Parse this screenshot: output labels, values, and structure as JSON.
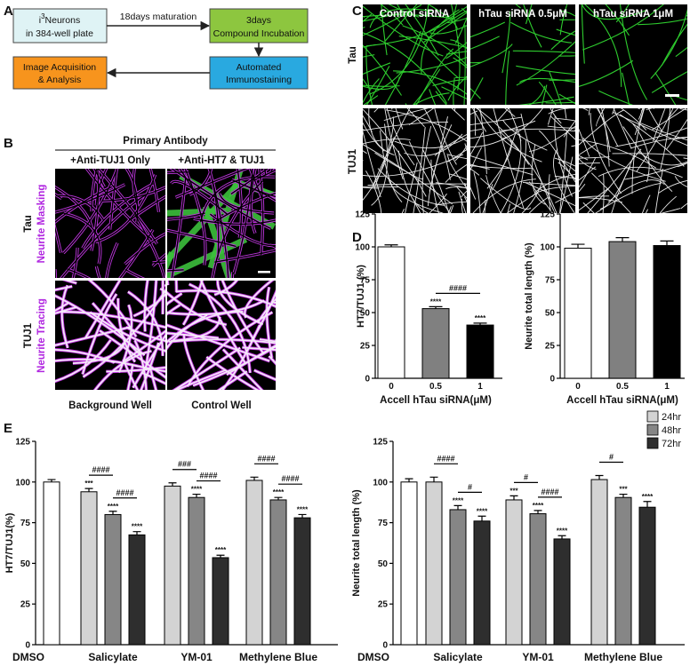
{
  "panel_labels": [
    "A",
    "B",
    "C",
    "D",
    "E"
  ],
  "panel_a": {
    "start_box": {
      "prefix": "i",
      "superscript": "3",
      "line1": "Neurons",
      "line2": "in 384-well plate"
    },
    "arrow_label": "18days maturation",
    "incubation_box": {
      "line1": "3days",
      "line2": "Compound Incubation"
    },
    "staining_box": {
      "line1": "Automated",
      "line2": "Immunostaining"
    },
    "analysis_box": {
      "line1": "Image Acquisition",
      "line2": "& Analysis"
    }
  },
  "panel_b": {
    "header": "Primary Antibody",
    "columns": [
      "+Anti-TUJ1 Only",
      "+Anti-HT7 & TUJ1"
    ],
    "rows": [
      {
        "stain": "Tau",
        "method": "Neurite Masking"
      },
      {
        "stain": "TUJ1",
        "method": "Neurite Tracing"
      }
    ],
    "footers": [
      "Background Well",
      "Control Well"
    ]
  },
  "panel_c": {
    "columns": [
      "Control siRNA",
      "hTau siRNA 0.5μM",
      "hTau siRNA 1μM"
    ],
    "rows": [
      "Tau",
      "TUJ1"
    ]
  },
  "chart_data": [
    {
      "type": "bar",
      "ylabel": "HT7/TUJ1 (%)",
      "xlabel": "Accell hTau siRNA(μM)",
      "categories": [
        "0",
        "0.5",
        "1"
      ],
      "values": [
        100,
        53,
        40.5
      ],
      "errors": [
        1.5,
        1.5,
        1.5
      ],
      "colors": [
        "#ffffff",
        "#808080",
        "#000000"
      ],
      "significance": [
        null,
        "****",
        "****"
      ],
      "comparisons": [
        {
          "label": "####",
          "bars": [
            1,
            2
          ]
        }
      ],
      "ylim": [
        0,
        125
      ],
      "yticks": [
        0,
        25,
        50,
        75,
        100,
        125
      ]
    },
    {
      "type": "bar",
      "ylabel": "Neurite total length (%)",
      "xlabel": "Accell hTau siRNA(μM)",
      "categories": [
        "0",
        "0.5",
        "1"
      ],
      "values": [
        99,
        104,
        101
      ],
      "errors": [
        3,
        3,
        3.5
      ],
      "colors": [
        "#ffffff",
        "#808080",
        "#000000"
      ],
      "ylim": [
        0,
        125
      ],
      "yticks": [
        0,
        25,
        50,
        75,
        100,
        125
      ]
    },
    {
      "type": "grouped_bar",
      "ylabel": "HT7/TUJ1(%)",
      "categories": [
        "DMSO",
        "Salicylate",
        "YM-01",
        "Methylene Blue"
      ],
      "control": {
        "values": [
          100,
          null,
          null,
          null
        ],
        "errors": [
          1.5,
          null,
          null,
          null
        ],
        "color": "#ffffff"
      },
      "series": [
        {
          "color": "#d3d3d3",
          "values": [
            null,
            94,
            97.5,
            101
          ],
          "errors": [
            null,
            2,
            2,
            2
          ],
          "significance": [
            null,
            "***",
            null,
            null
          ]
        },
        {
          "color": "#868686",
          "values": [
            null,
            80,
            90.5,
            89
          ],
          "errors": [
            null,
            2,
            2,
            1.5
          ],
          "significance": [
            null,
            "****",
            "****",
            "****"
          ]
        },
        {
          "color": "#2e2e2e",
          "values": [
            null,
            67.5,
            53.5,
            78
          ],
          "errors": [
            null,
            2,
            1.5,
            2
          ],
          "significance": [
            null,
            "****",
            "****",
            "****"
          ]
        }
      ],
      "comparisons": [
        {
          "label": "####",
          "category": 1,
          "series": [
            0,
            1
          ]
        },
        {
          "label": "####",
          "category": 1,
          "series": [
            1,
            2
          ]
        },
        {
          "label": "###",
          "category": 2,
          "series": [
            0,
            1
          ]
        },
        {
          "label": "####",
          "category": 2,
          "series": [
            1,
            2
          ]
        },
        {
          "label": "####",
          "category": 3,
          "series": [
            0,
            1
          ]
        },
        {
          "label": "####",
          "category": 3,
          "series": [
            1,
            2
          ]
        }
      ],
      "ylim": [
        0,
        125
      ],
      "yticks": [
        0,
        25,
        50,
        75,
        100,
        125
      ]
    },
    {
      "type": "grouped_bar",
      "ylabel": "Neurite total length (%)",
      "categories": [
        "DMSO",
        "Salicylate",
        "YM-01",
        "Methylene Blue"
      ],
      "control": {
        "values": [
          100,
          null,
          null,
          null
        ],
        "errors": [
          2,
          null,
          null,
          null
        ],
        "color": "#ffffff"
      },
      "series": [
        {
          "name": "24hr",
          "color": "#d3d3d3",
          "values": [
            null,
            100,
            89,
            101.5
          ],
          "errors": [
            null,
            3,
            2.5,
            2.5
          ],
          "significance": [
            null,
            null,
            "***",
            null
          ]
        },
        {
          "name": "48hr",
          "color": "#868686",
          "values": [
            null,
            83,
            80.5,
            90.5
          ],
          "errors": [
            null,
            2.5,
            2,
            2
          ],
          "significance": [
            null,
            "****",
            "****",
            "***"
          ]
        },
        {
          "name": "72hr",
          "color": "#2e2e2e",
          "values": [
            null,
            76,
            65,
            84.5
          ],
          "errors": [
            null,
            3,
            2,
            3.5
          ],
          "significance": [
            null,
            "****",
            "****",
            "****"
          ]
        }
      ],
      "comparisons": [
        {
          "label": "####",
          "category": 1,
          "series": [
            0,
            1
          ]
        },
        {
          "label": "#",
          "category": 1,
          "series": [
            1,
            2
          ]
        },
        {
          "label": "#",
          "category": 2,
          "series": [
            0,
            1
          ]
        },
        {
          "label": "####",
          "category": 2,
          "series": [
            1,
            2
          ]
        },
        {
          "label": "#",
          "category": 3,
          "series": [
            0,
            1
          ]
        }
      ],
      "legend": "upper right",
      "ylim": [
        0,
        125
      ],
      "yticks": [
        0,
        25,
        50,
        75,
        100,
        125
      ]
    }
  ]
}
